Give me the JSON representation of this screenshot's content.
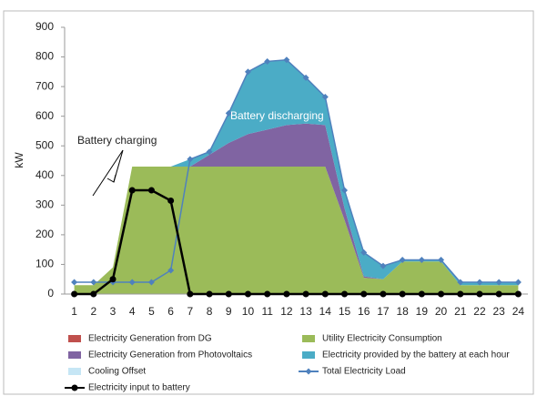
{
  "chart_data": {
    "type": "stacked_area_line",
    "y_label": "kW",
    "categories": [
      "1",
      "2",
      "3",
      "4",
      "5",
      "6",
      "7",
      "8",
      "9",
      "10",
      "11",
      "12",
      "13",
      "14",
      "15",
      "16",
      "17",
      "18",
      "19",
      "20",
      "21",
      "22",
      "23",
      "24"
    ],
    "ylim": [
      0,
      900
    ],
    "yticks": [
      0,
      100,
      200,
      300,
      400,
      500,
      600,
      700,
      800,
      900
    ],
    "grid": false,
    "legend": "bottom",
    "annotations": [
      {
        "text": "Battery charging"
      },
      {
        "text": "Battery discharging"
      }
    ],
    "series": [
      {
        "name": "Electricity Generation from DG",
        "type": "area",
        "color": "#c0504d",
        "values": [
          0,
          0,
          0,
          0,
          0,
          0,
          0,
          0,
          0,
          0,
          0,
          0,
          0,
          0,
          0,
          0,
          0,
          0,
          0,
          0,
          0,
          0,
          0,
          0
        ]
      },
      {
        "name": "Utility Electricity Consumption",
        "type": "area",
        "color": "#9bbb59",
        "values": [
          30,
          30,
          90,
          430,
          430,
          430,
          430,
          430,
          430,
          430,
          430,
          430,
          430,
          430,
          250,
          55,
          50,
          110,
          110,
          110,
          30,
          30,
          30,
          30
        ]
      },
      {
        "name": "Electricity Generation from Photovoltaics",
        "type": "area",
        "color": "#8064a2",
        "values": [
          0,
          0,
          0,
          0,
          0,
          0,
          0,
          40,
          80,
          110,
          125,
          140,
          145,
          140,
          40,
          5,
          0,
          0,
          0,
          0,
          0,
          0,
          0,
          0
        ]
      },
      {
        "name": "Electricity provided by the battery at each hour",
        "type": "area",
        "color": "#4bacc6",
        "values": [
          0,
          0,
          0,
          0,
          0,
          0,
          25,
          10,
          100,
          210,
          230,
          220,
          155,
          95,
          60,
          80,
          45,
          5,
          5,
          5,
          10,
          10,
          10,
          10
        ]
      },
      {
        "name": "Cooling Offset",
        "type": "area",
        "color": "#c6e6f5",
        "values": [
          0,
          0,
          0,
          0,
          0,
          0,
          0,
          0,
          0,
          0,
          0,
          0,
          0,
          0,
          0,
          0,
          0,
          0,
          0,
          0,
          0,
          0,
          0,
          0
        ]
      },
      {
        "name": "Total Electricity Load",
        "type": "line",
        "marker": "diamond",
        "color": "#4f81bd",
        "values": [
          40,
          40,
          40,
          40,
          40,
          80,
          455,
          480,
          610,
          750,
          785,
          790,
          730,
          665,
          350,
          140,
          95,
          115,
          115,
          115,
          40,
          40,
          40,
          40
        ]
      },
      {
        "name": "Electricity input to battery",
        "type": "line",
        "marker": "circle",
        "color": "#000000",
        "values": [
          0,
          0,
          50,
          350,
          350,
          315,
          0,
          0,
          0,
          0,
          0,
          0,
          0,
          0,
          0,
          0,
          0,
          0,
          0,
          0,
          0,
          0,
          0,
          0
        ]
      }
    ]
  }
}
